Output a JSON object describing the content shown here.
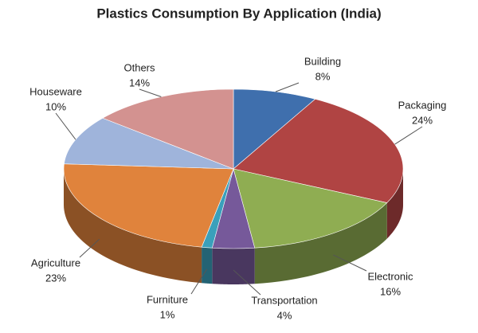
{
  "chart_data": {
    "type": "pie3d",
    "title": "Plastics Consumption By Application (India)",
    "categories": [
      "Building",
      "Packaging",
      "Electronic",
      "Transportation",
      "Furniture",
      "Agriculture",
      "Houseware",
      "Others"
    ],
    "values": [
      8,
      24,
      16,
      4,
      1,
      23,
      10,
      14
    ],
    "value_labels": [
      "8%",
      "24%",
      "16%",
      "4%",
      "1%",
      "23%",
      "10%",
      "14%"
    ],
    "colors": [
      "#3f6fad",
      "#b04443",
      "#8fad52",
      "#76599a",
      "#3aa0bb",
      "#e0833c",
      "#9fb4db",
      "#d39290"
    ]
  }
}
